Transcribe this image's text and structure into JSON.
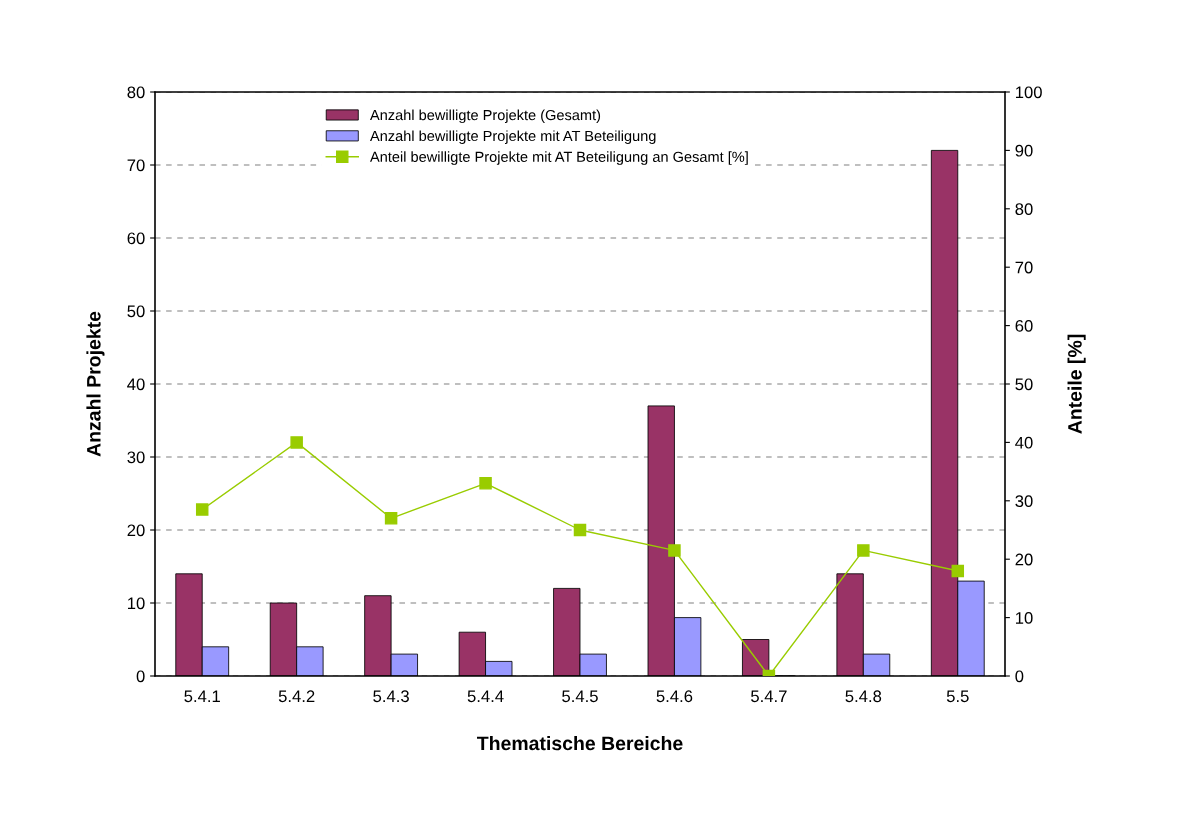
{
  "chart_data": {
    "type": "bar",
    "xlabel": "Thematische Bereiche",
    "ylabel": "Anzahl Projekte",
    "y2label": "Anteile [%]",
    "categories": [
      "5.4.1",
      "5.4.2",
      "5.4.3",
      "5.4.4",
      "5.4.5",
      "5.4.6",
      "5.4.7",
      "5.4.8",
      "5.5"
    ],
    "series": [
      {
        "name": "Anzahl bewilligte Projekte (Gesamt)",
        "color": "#993366",
        "values": [
          14,
          10,
          11,
          6,
          12,
          37,
          5,
          14,
          72
        ]
      },
      {
        "name": "Anzahl bewilligte Projekte mit AT Beteiligung",
        "color": "#9999ff",
        "values": [
          4,
          4,
          3,
          2,
          3,
          8,
          0,
          3,
          13
        ]
      },
      {
        "name": "Anteil bewilligte Projekte mit AT Beteiligung an Gesamt [%]",
        "type": "line",
        "axis": "y2",
        "color": "#99cc00",
        "marker": "square",
        "line_style": "solid",
        "values": [
          28.5,
          40,
          27,
          33,
          25,
          21.5,
          0,
          21.5,
          18
        ]
      }
    ],
    "ylim": [
      0,
      80
    ],
    "yticks": [
      0,
      10,
      20,
      30,
      40,
      50,
      60,
      70,
      80
    ],
    "y2lim": [
      0,
      100
    ],
    "y2ticks": [
      0,
      10,
      20,
      30,
      40,
      50,
      60,
      70,
      80,
      90,
      100
    ],
    "grid": "y",
    "legend": "top"
  }
}
